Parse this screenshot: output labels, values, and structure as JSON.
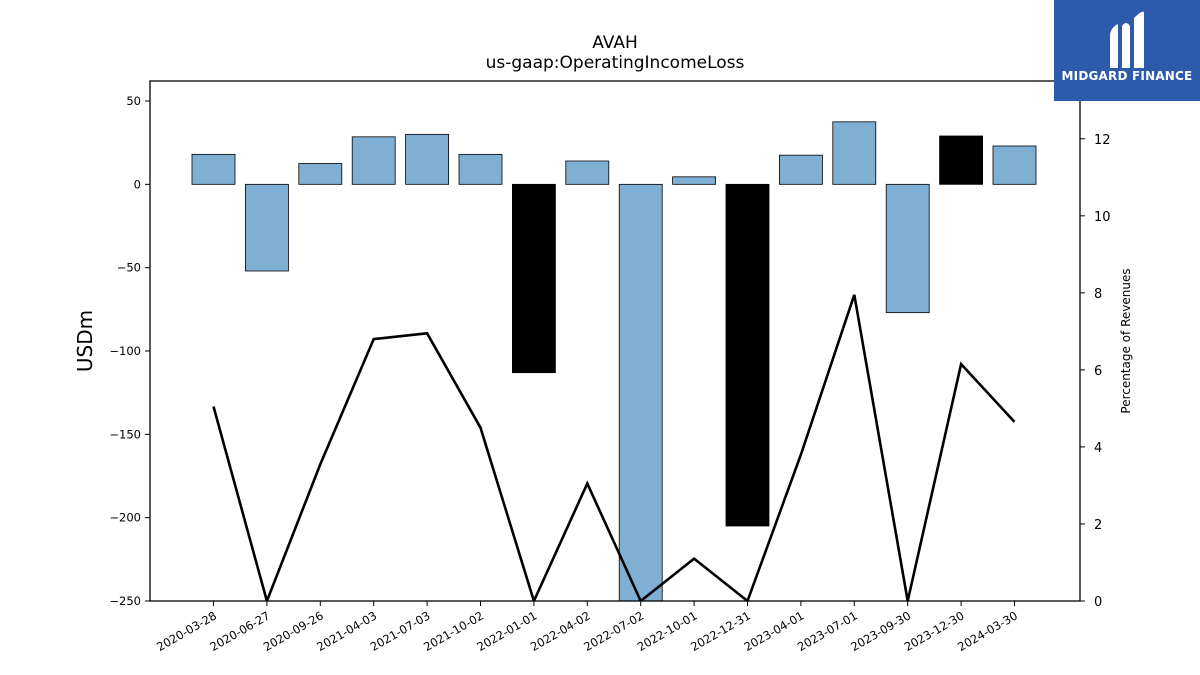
{
  "brand": {
    "name": "MIDGARD FINANCE",
    "bg_color": "#2d5bab"
  },
  "chart_data": {
    "type": "bar",
    "title": "AVAH",
    "subtitle": "us-gaap:OperatingIncomeLoss",
    "ylabel": "USDm",
    "y2label": "Percentage of Revenues",
    "ylim": [
      -250,
      62
    ],
    "y2lim": [
      0,
      13.5
    ],
    "yticks": [
      50,
      0,
      -50,
      -100,
      -150,
      -200,
      -250
    ],
    "y2ticks": [
      0,
      2,
      4,
      6,
      8,
      10,
      12
    ],
    "categories": [
      "2020-03-28",
      "2020-06-27",
      "2020-09-26",
      "2021-04-03",
      "2021-07-03",
      "2021-10-02",
      "2022-01-01",
      "2022-04-02",
      "2022-07-02",
      "2022-10-01",
      "2022-12-31",
      "2023-04-01",
      "2023-07-01",
      "2023-09-30",
      "2023-12-30",
      "2024-03-30"
    ],
    "series": [
      {
        "kind": "bar",
        "values": [
          18,
          -52,
          12.5,
          28.5,
          30,
          18,
          -113,
          14,
          -252,
          4.5,
          -205,
          17.5,
          37.5,
          -77,
          29,
          23
        ],
        "highlight": [
          false,
          false,
          false,
          false,
          false,
          false,
          true,
          false,
          false,
          false,
          true,
          false,
          false,
          false,
          true,
          false
        ]
      },
      {
        "kind": "line",
        "axis": "right",
        "values": [
          5.05,
          null,
          3.55,
          6.8,
          6.95,
          4.5,
          null,
          3.05,
          null,
          1.1,
          null,
          3.8,
          7.95,
          null,
          6.15,
          4.65
        ]
      }
    ],
    "colors": {
      "bar": "#7fb0d4",
      "bar_highlight": "#000000",
      "line": "#000000"
    },
    "grid": false,
    "legend": "none"
  }
}
